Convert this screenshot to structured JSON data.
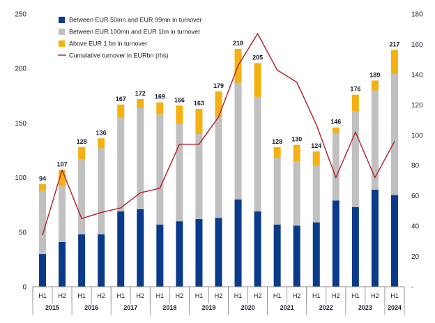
{
  "chart_data": {
    "type": "bar",
    "stacked": true,
    "categories": [
      "H1",
      "H2",
      "H1",
      "H2",
      "H1",
      "H2",
      "H1",
      "H2",
      "H1",
      "H2",
      "H1",
      "H2",
      "H1",
      "H2",
      "H1",
      "H2",
      "H1",
      "H2",
      "H1"
    ],
    "years": [
      {
        "label": "2015",
        "span": 2
      },
      {
        "label": "2016",
        "span": 2
      },
      {
        "label": "2017",
        "span": 2
      },
      {
        "label": "2018",
        "span": 2
      },
      {
        "label": "2019",
        "span": 2
      },
      {
        "label": "2020",
        "span": 2
      },
      {
        "label": "2021",
        "span": 2
      },
      {
        "label": "2022",
        "span": 2
      },
      {
        "label": "2023",
        "span": 2
      },
      {
        "label": "2024",
        "span": 1
      }
    ],
    "series": [
      {
        "name": "Between EUR 50mn and EUR 99mn in turnover",
        "color": "#0a3a8a",
        "values": [
          30,
          41,
          48,
          48,
          69,
          71,
          57,
          60,
          62,
          63,
          80,
          69,
          57,
          56,
          59,
          79,
          73,
          89,
          84
        ]
      },
      {
        "name": "Between EUR 100mn and EUR 1bn in turnover",
        "color": "#c0c0c0",
        "values": [
          58,
          51,
          69,
          79,
          86,
          93,
          101,
          89,
          78,
          93,
          107,
          105,
          61,
          59,
          52,
          62,
          88,
          91,
          111
        ]
      },
      {
        "name": "Above EUR 1 bn in turnover",
        "color": "#f5b111",
        "values": [
          6,
          15,
          11,
          9,
          12,
          8,
          11,
          17,
          23,
          23,
          31,
          31,
          10,
          15,
          13,
          5,
          15,
          9,
          22
        ]
      }
    ],
    "totals": [
      94,
      107,
      128,
      136,
      167,
      172,
      169,
      166,
      163,
      179,
      218,
      205,
      128,
      130,
      124,
      146,
      176,
      189,
      217
    ],
    "line": {
      "name": "Cumulative turnover in EURbn (rhs)",
      "color": "#b01c24",
      "axis": "right",
      "values": [
        34,
        77,
        45,
        49,
        52,
        62,
        65,
        94,
        94,
        112,
        146,
        167,
        143,
        135,
        107,
        72,
        102,
        72,
        96
      ]
    },
    "y_left": {
      "min": 0,
      "max": 250,
      "ticks": [
        "0",
        "50",
        "100",
        "150",
        "200",
        "250"
      ]
    },
    "y_right": {
      "min": 0,
      "max": 180,
      "ticks": [
        "-",
        "20",
        "40",
        "60",
        "80",
        "100",
        "120",
        "140",
        "160",
        "180"
      ]
    },
    "legend_position": "top-left",
    "grid": false
  }
}
